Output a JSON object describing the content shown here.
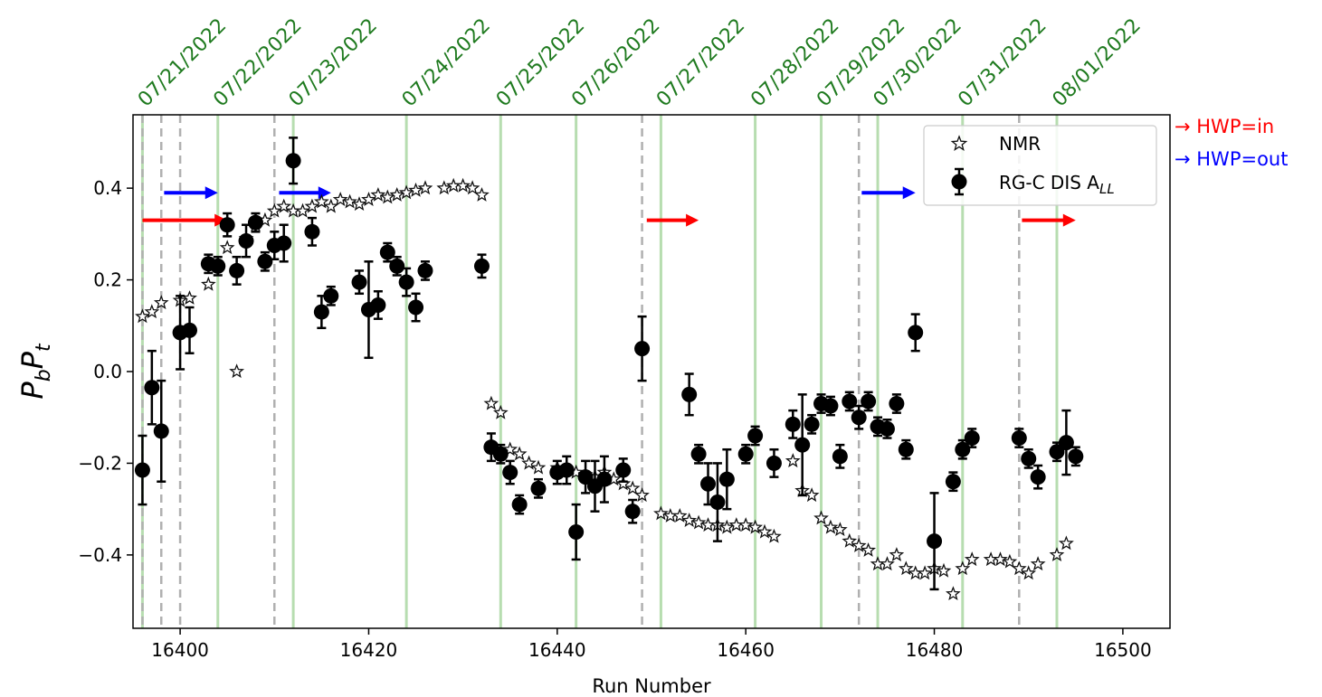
{
  "chart_data": {
    "type": "scatter",
    "xlabel": "Run Number",
    "ylabel_main": "P",
    "ylabel_sub1": "b",
    "ylabel_mid": "P",
    "ylabel_sub2": "t",
    "xlim": [
      16395,
      16505
    ],
    "ylim": [
      -0.56,
      0.56
    ],
    "xticks": [
      16400,
      16420,
      16440,
      16460,
      16480,
      16500
    ],
    "xtick_labels": [
      "16400",
      "16420",
      "16440",
      "16460",
      "16480",
      "16500"
    ],
    "yticks": [
      0.4,
      0.2,
      0.0,
      -0.2,
      -0.4
    ],
    "ytick_labels": [
      "0.4",
      "0.2",
      "0.0",
      "−0.2",
      "−0.4"
    ],
    "grid": false,
    "legend_position": "top-right",
    "legend": {
      "nmr_label": "NMR",
      "dis_label_prefix": "RG-C DIS A",
      "dis_label_sub": "LL"
    },
    "hwp_legend": {
      "in_label": "→ HWP=in",
      "out_label": "→ HWP=out",
      "in_color": "#ff0000",
      "out_color": "#0000ff"
    },
    "date_lines": [
      {
        "x": 16396,
        "label": "07/21/2022"
      },
      {
        "x": 16404,
        "label": "07/22/2022"
      },
      {
        "x": 16412,
        "label": "07/23/2022"
      },
      {
        "x": 16424,
        "label": "07/24/2022"
      },
      {
        "x": 16434,
        "label": "07/25/2022"
      },
      {
        "x": 16442,
        "label": "07/26/2022"
      },
      {
        "x": 16451,
        "label": "07/27/2022"
      },
      {
        "x": 16461,
        "label": "07/28/2022"
      },
      {
        "x": 16468,
        "label": "07/29/2022"
      },
      {
        "x": 16474,
        "label": "07/30/2022"
      },
      {
        "x": 16483,
        "label": "07/31/2022"
      },
      {
        "x": 16493,
        "label": "08/01/2022"
      }
    ],
    "date_line_color": "#b7ddb0",
    "date_label_color": "#1f7a1f",
    "hwp_change_lines": [
      16396,
      16398,
      16400,
      16410,
      16449,
      16472,
      16489
    ],
    "arrows": [
      {
        "x1": 16396,
        "x2": 16405,
        "y": 0.33,
        "color": "#ff0000"
      },
      {
        "x1": 16398.3,
        "x2": 16404,
        "y": 0.39,
        "color": "#0000ff"
      },
      {
        "x1": 16410.5,
        "x2": 16416,
        "y": 0.39,
        "color": "#0000ff"
      },
      {
        "x1": 16449.5,
        "x2": 16455,
        "y": 0.33,
        "color": "#ff0000"
      },
      {
        "x1": 16472.3,
        "x2": 16478,
        "y": 0.39,
        "color": "#0000ff"
      },
      {
        "x1": 16489.3,
        "x2": 16495,
        "y": 0.33,
        "color": "#ff0000"
      }
    ],
    "nmr": {
      "x": [
        16396,
        16397,
        16398,
        16400,
        16401,
        16403,
        16405,
        16406,
        16407,
        16408,
        16409,
        16410,
        16411,
        16412,
        16413,
        16414,
        16415,
        16416,
        16417,
        16418,
        16419,
        16420,
        16421,
        16422,
        16423,
        16424,
        16425,
        16426,
        16428,
        16429,
        16430,
        16431,
        16432,
        16433,
        16434,
        16435,
        16436,
        16437,
        16438,
        16440,
        16441,
        16442,
        16443,
        16444,
        16445,
        16446,
        16447,
        16448,
        16449,
        16451,
        16452,
        16453,
        16454,
        16455,
        16456,
        16457,
        16458,
        16459,
        16460,
        16461,
        16462,
        16463,
        16465,
        16466,
        16467,
        16468,
        16469,
        16470,
        16471,
        16472,
        16473,
        16474,
        16475,
        16476,
        16477,
        16478,
        16479,
        16480,
        16481,
        16482,
        16483,
        16484,
        16486,
        16487,
        16488,
        16489,
        16490,
        16491,
        16493,
        16494
      ],
      "y": [
        0.12,
        0.13,
        0.15,
        0.155,
        0.16,
        0.19,
        0.27,
        0.0,
        0.29,
        0.32,
        0.33,
        0.35,
        0.36,
        0.35,
        0.35,
        0.36,
        0.37,
        0.36,
        0.375,
        0.37,
        0.365,
        0.375,
        0.385,
        0.38,
        0.385,
        0.39,
        0.395,
        0.4,
        0.4,
        0.405,
        0.405,
        0.4,
        0.385,
        -0.07,
        -0.09,
        -0.17,
        -0.18,
        -0.2,
        -0.21,
        -0.21,
        -0.215,
        -0.22,
        -0.225,
        -0.23,
        -0.22,
        -0.235,
        -0.245,
        -0.255,
        -0.27,
        -0.31,
        -0.315,
        -0.315,
        -0.325,
        -0.33,
        -0.335,
        -0.335,
        -0.34,
        -0.335,
        -0.335,
        -0.34,
        -0.35,
        -0.36,
        -0.195,
        -0.26,
        -0.27,
        -0.32,
        -0.34,
        -0.345,
        -0.37,
        -0.38,
        -0.39,
        -0.42,
        -0.42,
        -0.4,
        -0.43,
        -0.44,
        -0.44,
        -0.43,
        -0.435,
        -0.485,
        -0.43,
        -0.41,
        -0.41,
        -0.41,
        -0.415,
        -0.43,
        -0.44,
        -0.42,
        -0.4,
        -0.375
      ]
    },
    "dis": {
      "x": [
        16396,
        16397,
        16398,
        16400,
        16401,
        16403,
        16404,
        16405,
        16406,
        16407,
        16408,
        16409,
        16410,
        16411,
        16412,
        16414,
        16415,
        16416,
        16419,
        16420,
        16421,
        16422,
        16423,
        16424,
        16425,
        16426,
        16432,
        16433,
        16434,
        16435,
        16436,
        16438,
        16440,
        16441,
        16442,
        16443,
        16444,
        16445,
        16447,
        16448,
        16449,
        16454,
        16455,
        16456,
        16457,
        16458,
        16460,
        16461,
        16463,
        16465,
        16466,
        16467,
        16468,
        16469,
        16470,
        16471,
        16472,
        16473,
        16474,
        16475,
        16476,
        16477,
        16478,
        16480,
        16482,
        16483,
        16484,
        16489,
        16490,
        16491,
        16493,
        16494,
        16495
      ],
      "y": [
        -0.215,
        -0.035,
        -0.13,
        0.085,
        0.09,
        0.235,
        0.23,
        0.32,
        0.22,
        0.285,
        0.325,
        0.24,
        0.275,
        0.28,
        0.46,
        0.305,
        0.13,
        0.165,
        0.195,
        0.135,
        0.145,
        0.26,
        0.23,
        0.195,
        0.14,
        0.22,
        0.23,
        -0.165,
        -0.18,
        -0.22,
        -0.29,
        -0.255,
        -0.22,
        -0.215,
        -0.35,
        -0.23,
        -0.25,
        -0.235,
        -0.215,
        -0.305,
        0.05,
        -0.05,
        -0.18,
        -0.245,
        -0.285,
        -0.235,
        -0.18,
        -0.14,
        -0.2,
        -0.115,
        -0.16,
        -0.115,
        -0.07,
        -0.075,
        -0.185,
        -0.065,
        -0.1,
        -0.065,
        -0.12,
        -0.125,
        -0.07,
        -0.17,
        0.085,
        -0.37,
        -0.24,
        -0.17,
        -0.145,
        -0.145,
        -0.19,
        -0.23,
        -0.175,
        -0.155,
        -0.185
      ],
      "err": [
        0.075,
        0.08,
        0.11,
        0.08,
        0.05,
        0.02,
        0.02,
        0.025,
        0.03,
        0.035,
        0.02,
        0.02,
        0.03,
        0.04,
        0.05,
        0.03,
        0.035,
        0.02,
        0.025,
        0.105,
        0.03,
        0.02,
        0.02,
        0.03,
        0.03,
        0.02,
        0.025,
        0.03,
        0.02,
        0.025,
        0.02,
        0.02,
        0.025,
        0.03,
        0.06,
        0.035,
        0.055,
        0.05,
        0.025,
        0.025,
        0.07,
        0.045,
        0.02,
        0.045,
        0.085,
        0.065,
        0.02,
        0.02,
        0.03,
        0.03,
        0.11,
        0.02,
        0.02,
        0.02,
        0.025,
        0.02,
        0.025,
        0.02,
        0.02,
        0.02,
        0.02,
        0.02,
        0.04,
        0.105,
        0.02,
        0.02,
        0.02,
        0.02,
        0.02,
        0.025,
        0.02,
        0.07,
        0.02
      ]
    }
  }
}
